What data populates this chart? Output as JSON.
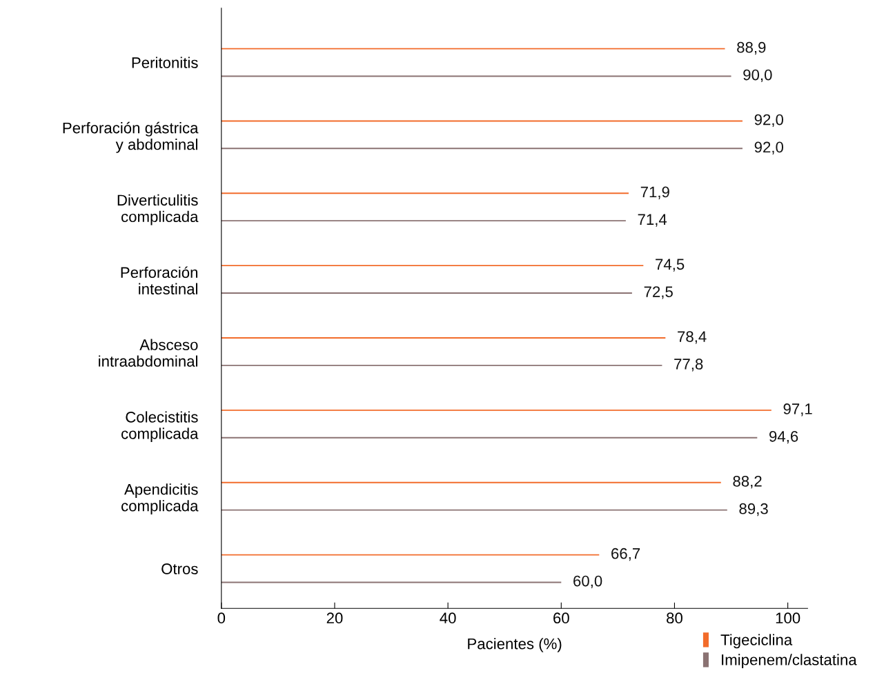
{
  "chart_data": {
    "type": "bar",
    "orientation": "horizontal",
    "xlabel": "Pacientes (%)",
    "categories": [
      "Peritonitis",
      "Perforación gástrica\ny abdominal",
      "Diverticulitis\ncomplicada",
      "Perforación\nintestinal",
      "Absceso\nintraabdominal",
      "Colecistitis\ncomplicada",
      "Apendicitis\ncomplicada",
      "Otros"
    ],
    "series": [
      {
        "name": "Tigeciclina",
        "color": "#f26b2a",
        "values": [
          88.9,
          92.0,
          71.9,
          74.5,
          78.4,
          97.1,
          88.2,
          66.7
        ],
        "value_labels": [
          "88,9",
          "92,0",
          "71,9",
          "74,5",
          "78,4",
          "97,1",
          "88,2",
          "66,7"
        ]
      },
      {
        "name": "Imipenem/clastatina",
        "color": "#8a7272",
        "values": [
          90.0,
          92.0,
          71.4,
          72.5,
          77.8,
          94.6,
          89.3,
          60.0
        ],
        "value_labels": [
          "90,0",
          "92,0",
          "71,4",
          "72,5",
          "77,8",
          "94,6",
          "89,3",
          "60,0"
        ]
      }
    ],
    "xlim": [
      0,
      103.5
    ],
    "xticks": [
      0,
      20,
      40,
      60,
      80,
      100
    ],
    "grid": false,
    "legend": "bottom right"
  }
}
